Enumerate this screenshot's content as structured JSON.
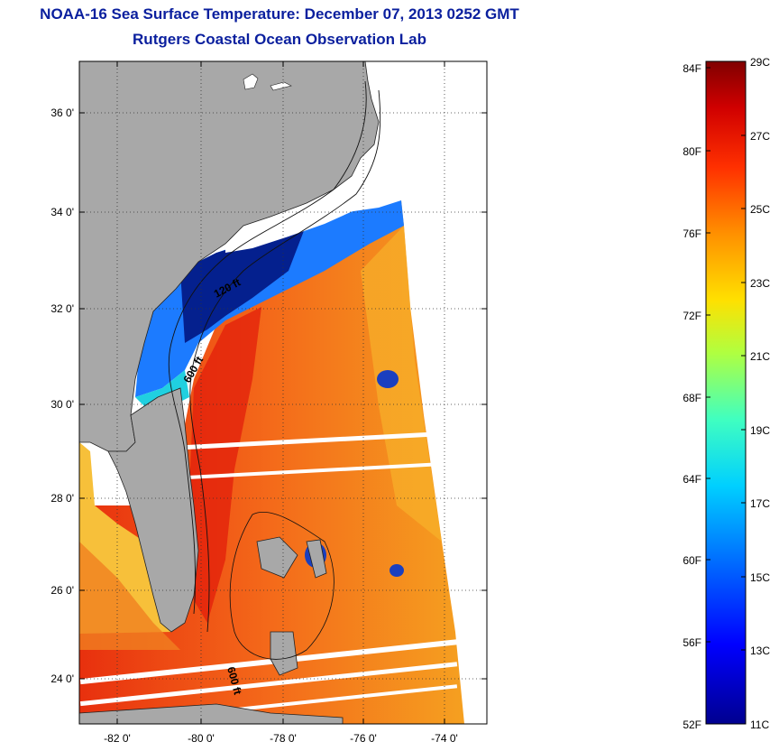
{
  "header": {
    "title": "NOAA-16 Sea Surface Temperature:  December 07, 2013 0252 GMT",
    "subtitle": "Rutgers Coastal Ocean Observation Lab"
  },
  "map": {
    "lat_labels": [
      "36 0'",
      "34 0'",
      "32 0'",
      "30 0'",
      "28 0'",
      "26 0'",
      "24 0'"
    ],
    "lon_labels": [
      "-82 0'",
      "-80 0'",
      "-78 0'",
      "-76 0'",
      "-74 0'"
    ],
    "contour_labels": [
      "120 ft",
      "600 ft",
      "600 ft"
    ],
    "colors": {
      "land": "#a8a8a8",
      "ocean_warm": "#f26b1d",
      "ocean_cool": "#1a3fbf"
    }
  },
  "colorbar": {
    "f_labels": [
      "84F",
      "80F",
      "76F",
      "72F",
      "68F",
      "64F",
      "60F",
      "56F",
      "52F"
    ],
    "c_labels": [
      "29C",
      "27C",
      "25C",
      "23C",
      "21C",
      "19C",
      "17C",
      "15C",
      "13C",
      "11C"
    ]
  }
}
